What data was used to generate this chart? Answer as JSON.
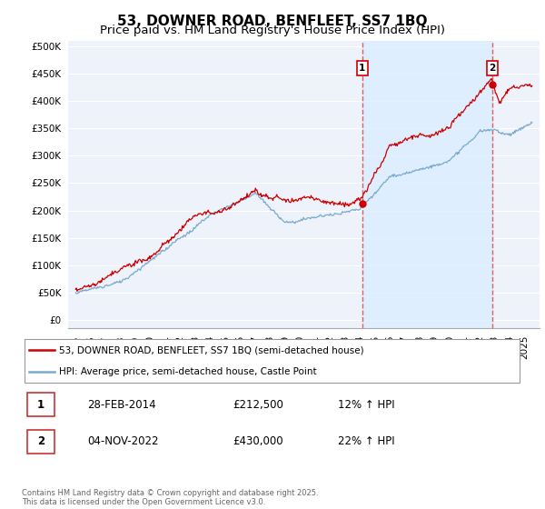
{
  "title": "53, DOWNER ROAD, BENFLEET, SS7 1BQ",
  "subtitle": "Price paid vs. HM Land Registry's House Price Index (HPI)",
  "yticks": [
    0,
    50000,
    100000,
    150000,
    200000,
    250000,
    300000,
    350000,
    400000,
    450000,
    500000
  ],
  "ytick_labels": [
    "£0",
    "£50K",
    "£100K",
    "£150K",
    "£200K",
    "£250K",
    "£300K",
    "£350K",
    "£400K",
    "£450K",
    "£500K"
  ],
  "xlim_start": 1994.5,
  "xlim_end": 2026.0,
  "ylim_bottom": -15000,
  "ylim_top": 510000,
  "sale1_date": 2014.16,
  "sale1_price": 212500,
  "sale1_label": "1",
  "sale2_date": 2022.84,
  "sale2_price": 430000,
  "sale2_label": "2",
  "vline_color": "#e06060",
  "price_line_color": "#cc0000",
  "hpi_line_color": "#7aabce",
  "shade_color": "#ddeeff",
  "background_color": "#eef2fb",
  "legend_line1": "53, DOWNER ROAD, BENFLEET, SS7 1BQ (semi-detached house)",
  "legend_line2": "HPI: Average price, semi-detached house, Castle Point",
  "table_row1_num": "1",
  "table_row1_date": "28-FEB-2014",
  "table_row1_price": "£212,500",
  "table_row1_hpi": "12% ↑ HPI",
  "table_row2_num": "2",
  "table_row2_date": "04-NOV-2022",
  "table_row2_price": "£430,000",
  "table_row2_hpi": "22% ↑ HPI",
  "footer": "Contains HM Land Registry data © Crown copyright and database right 2025.\nThis data is licensed under the Open Government Licence v3.0.",
  "title_fontsize": 11,
  "subtitle_fontsize": 9.5,
  "tick_fontsize": 7.5,
  "xticks": [
    1995,
    1996,
    1997,
    1998,
    1999,
    2000,
    2001,
    2002,
    2003,
    2004,
    2005,
    2006,
    2007,
    2008,
    2009,
    2010,
    2011,
    2012,
    2013,
    2014,
    2015,
    2016,
    2017,
    2018,
    2019,
    2020,
    2021,
    2022,
    2023,
    2024,
    2025
  ]
}
